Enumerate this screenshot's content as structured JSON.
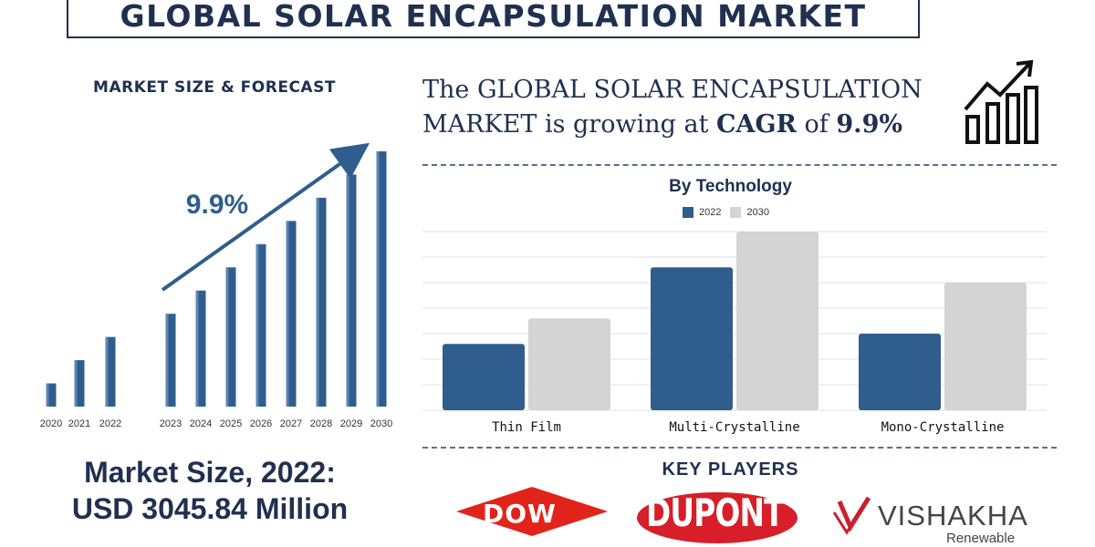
{
  "header": {
    "title": "GLOBAL SOLAR ENCAPSULATION MARKET"
  },
  "left_panel": {
    "heading": "MARKET SIZE & FORECAST",
    "market_size_line1": "Market Size, 2022:",
    "market_size_line2": "USD 3045.84 Million"
  },
  "cagr_statement": {
    "part1": "The GLOBAL SOLAR ENCAPSULATION MARKET is growing at",
    "cagr_word": "CAGR",
    "of_word": "of",
    "value": "9.9%"
  },
  "technology_section": {
    "title": "By Technology"
  },
  "key_players": {
    "heading": "KEY PLAYERS",
    "logos": [
      {
        "name": "DOW",
        "icon": "dow-logo"
      },
      {
        "name": "DUPONT",
        "icon": "dupont-logo"
      },
      {
        "name": "VISHAKHA",
        "subtitle": "Renewable",
        "icon": "vishakha-logo"
      }
    ]
  },
  "colors": {
    "navy": "#1f3050",
    "bar_blue": "#2f5e8e",
    "bar_grey": "#d4d4d4",
    "dow_red": "#e2231a",
    "dupont_red": "#d81e28",
    "vishakha_red": "#c8202f"
  },
  "chart_data": [
    {
      "type": "bar",
      "title": "MARKET SIZE & FORECAST",
      "categories": [
        "2020",
        "2021",
        "2022",
        "2023",
        "2024",
        "2025",
        "2026",
        "2027",
        "2028",
        "2029",
        "2030"
      ],
      "values": [
        1.0,
        2.0,
        3.0,
        4.0,
        5.0,
        6.0,
        7.0,
        8.0,
        9.0,
        10.0,
        11.0
      ],
      "annotation": "9.9%",
      "ylim": [
        0,
        11
      ],
      "grid": false,
      "axis_visible": false
    },
    {
      "type": "bar",
      "title": "By Technology",
      "categories": [
        "Thin Film",
        "Multi-Crystalline",
        "Mono-Crystalline"
      ],
      "series": [
        {
          "name": "2022",
          "values": [
            1.3,
            2.8,
            1.5
          ]
        },
        {
          "name": "2030",
          "values": [
            1.8,
            3.5,
            2.5
          ]
        }
      ],
      "ylim": [
        0,
        3.5
      ],
      "grid": true,
      "legend_position": "top"
    }
  ]
}
